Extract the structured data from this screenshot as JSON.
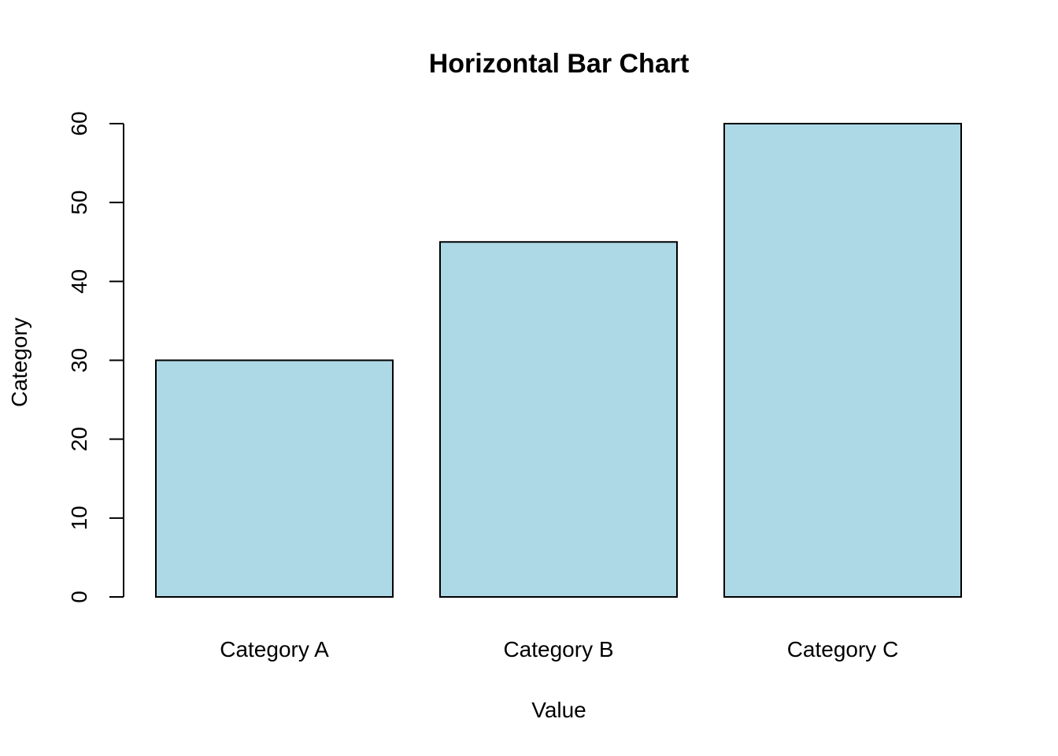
{
  "chart_data": {
    "type": "bar",
    "title": "Horizontal Bar Chart",
    "xlabel": "Value",
    "ylabel": "Category",
    "categories": [
      "Category A",
      "Category B",
      "Category C"
    ],
    "values": [
      30,
      45,
      60
    ],
    "ylim": [
      0,
      60
    ],
    "yticks": [
      0,
      10,
      20,
      30,
      40,
      50,
      60
    ],
    "grid": false,
    "bar_color": "#add8e6",
    "bar_border_color": "#000000"
  }
}
